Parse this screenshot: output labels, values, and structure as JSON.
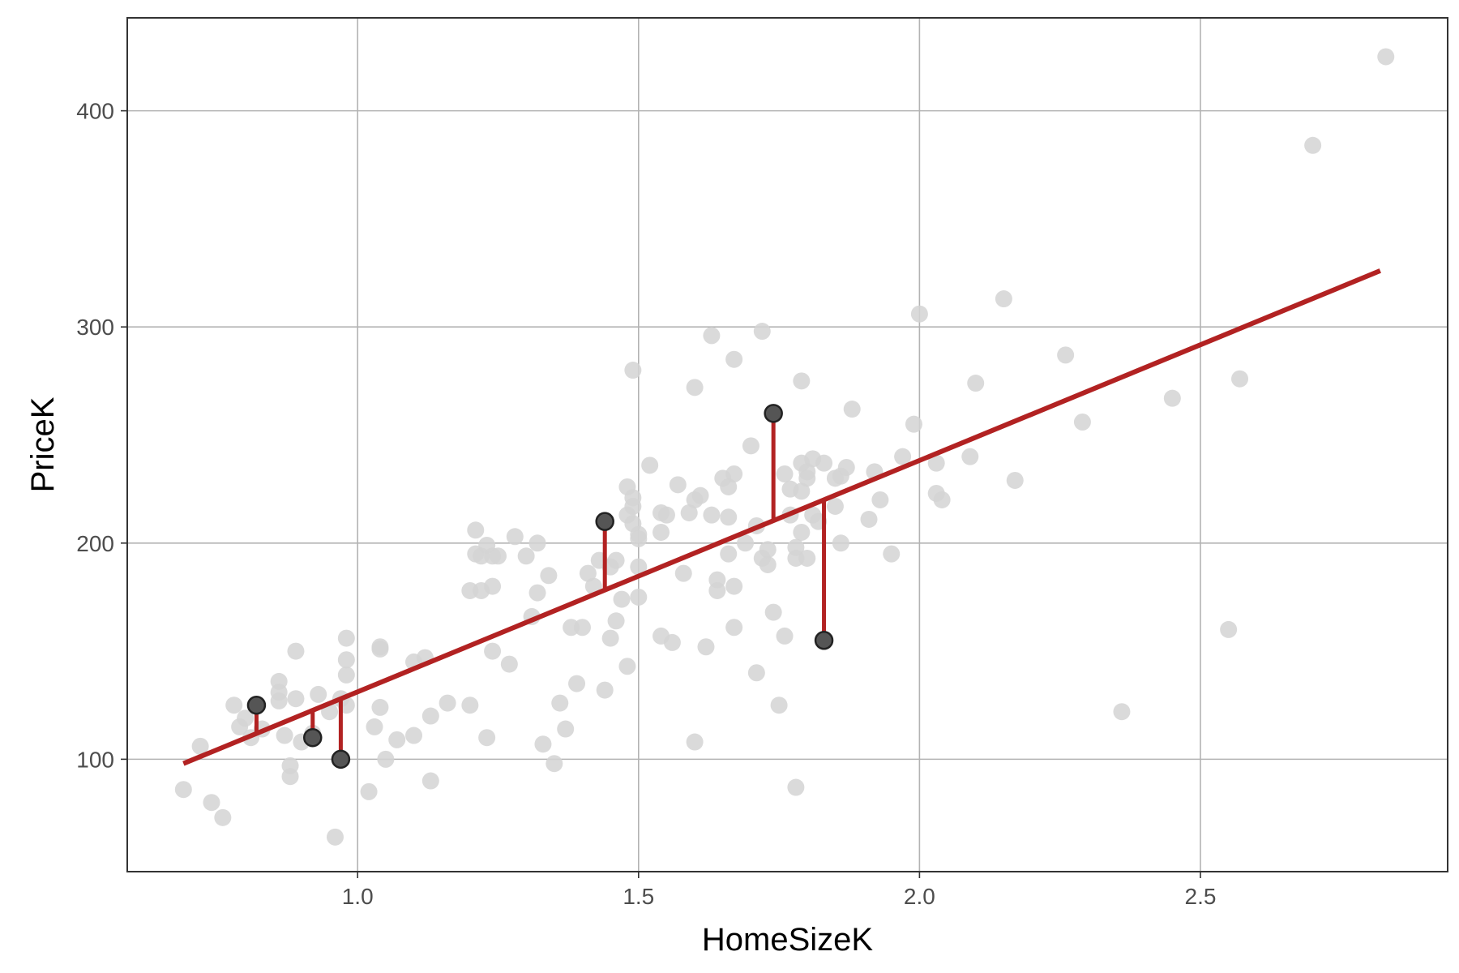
{
  "colors": {
    "background_points": "#d3d3d3",
    "highlight_points": "#555555",
    "highlight_point_outline": "#222222",
    "regression_line": "#b22222",
    "residual_segments": "#b22222",
    "grid": "#b3b3b3",
    "panel_border": "#333333"
  },
  "chart_data": {
    "type": "scatter",
    "title": "",
    "xlabel": "HomeSizeK",
    "ylabel": "PriceK",
    "xlim": [
      0.59,
      2.94
    ],
    "ylim": [
      48,
      443
    ],
    "x_ticks": [
      1.0,
      1.5,
      2.0,
      2.5
    ],
    "x_tick_labels": [
      "1.0",
      "1.5",
      "2.0",
      "2.5"
    ],
    "y_ticks": [
      100,
      200,
      300,
      400
    ],
    "y_tick_labels": [
      "100",
      "200",
      "300",
      "400"
    ],
    "grid": true,
    "legend": "none",
    "regression_line": {
      "x": [
        0.69,
        2.82
      ],
      "y": [
        98,
        326
      ]
    },
    "highlighted_points": [
      {
        "x": 0.82,
        "y": 125,
        "fitted": 112
      },
      {
        "x": 0.92,
        "y": 110,
        "fitted": 122
      },
      {
        "x": 0.97,
        "y": 100,
        "fitted": 128
      },
      {
        "x": 1.44,
        "y": 210,
        "fitted": 178
      },
      {
        "x": 1.74,
        "y": 260,
        "fitted": 210
      },
      {
        "x": 1.83,
        "y": 155,
        "fitted": 220
      }
    ],
    "points": [
      [
        0.69,
        86
      ],
      [
        0.72,
        106
      ],
      [
        0.74,
        80
      ],
      [
        0.76,
        73
      ],
      [
        0.78,
        125
      ],
      [
        0.79,
        115
      ],
      [
        0.8,
        119
      ],
      [
        0.81,
        110
      ],
      [
        0.83,
        114
      ],
      [
        0.86,
        136
      ],
      [
        0.86,
        127
      ],
      [
        0.86,
        131
      ],
      [
        0.87,
        111
      ],
      [
        0.88,
        97
      ],
      [
        0.88,
        92
      ],
      [
        0.89,
        150
      ],
      [
        0.89,
        128
      ],
      [
        0.9,
        108
      ],
      [
        0.92,
        112
      ],
      [
        0.93,
        130
      ],
      [
        0.95,
        122
      ],
      [
        0.96,
        64
      ],
      [
        0.97,
        128
      ],
      [
        0.98,
        125
      ],
      [
        0.98,
        139
      ],
      [
        0.98,
        146
      ],
      [
        0.98,
        156
      ],
      [
        1.02,
        85
      ],
      [
        1.03,
        115
      ],
      [
        1.04,
        151
      ],
      [
        1.04,
        152
      ],
      [
        1.04,
        124
      ],
      [
        1.05,
        100
      ],
      [
        1.07,
        109
      ],
      [
        1.1,
        145
      ],
      [
        1.1,
        111
      ],
      [
        1.12,
        147
      ],
      [
        1.13,
        90
      ],
      [
        1.13,
        120
      ],
      [
        1.16,
        126
      ],
      [
        1.2,
        178
      ],
      [
        1.2,
        125
      ],
      [
        1.21,
        206
      ],
      [
        1.21,
        195
      ],
      [
        1.22,
        178
      ],
      [
        1.22,
        194
      ],
      [
        1.23,
        199
      ],
      [
        1.23,
        110
      ],
      [
        1.24,
        194
      ],
      [
        1.24,
        180
      ],
      [
        1.24,
        150
      ],
      [
        1.25,
        194
      ],
      [
        1.27,
        144
      ],
      [
        1.28,
        203
      ],
      [
        1.3,
        194
      ],
      [
        1.31,
        166
      ],
      [
        1.32,
        177
      ],
      [
        1.32,
        200
      ],
      [
        1.33,
        107
      ],
      [
        1.34,
        185
      ],
      [
        1.35,
        98
      ],
      [
        1.36,
        126
      ],
      [
        1.37,
        114
      ],
      [
        1.38,
        161
      ],
      [
        1.39,
        135
      ],
      [
        1.4,
        161
      ],
      [
        1.41,
        186
      ],
      [
        1.42,
        180
      ],
      [
        1.43,
        192
      ],
      [
        1.44,
        132
      ],
      [
        1.45,
        189
      ],
      [
        1.45,
        156
      ],
      [
        1.46,
        164
      ],
      [
        1.46,
        192
      ],
      [
        1.47,
        174
      ],
      [
        1.48,
        143
      ],
      [
        1.48,
        226
      ],
      [
        1.48,
        213
      ],
      [
        1.49,
        209
      ],
      [
        1.49,
        221
      ],
      [
        1.49,
        217
      ],
      [
        1.49,
        280
      ],
      [
        1.5,
        204
      ],
      [
        1.5,
        189
      ],
      [
        1.5,
        202
      ],
      [
        1.5,
        175
      ],
      [
        1.52,
        236
      ],
      [
        1.54,
        214
      ],
      [
        1.54,
        205
      ],
      [
        1.54,
        157
      ],
      [
        1.55,
        213
      ],
      [
        1.56,
        154
      ],
      [
        1.57,
        227
      ],
      [
        1.58,
        186
      ],
      [
        1.59,
        214
      ],
      [
        1.6,
        220
      ],
      [
        1.6,
        272
      ],
      [
        1.6,
        108
      ],
      [
        1.61,
        222
      ],
      [
        1.62,
        152
      ],
      [
        1.63,
        213
      ],
      [
        1.63,
        296
      ],
      [
        1.64,
        183
      ],
      [
        1.64,
        178
      ],
      [
        1.65,
        230
      ],
      [
        1.66,
        212
      ],
      [
        1.66,
        195
      ],
      [
        1.66,
        226
      ],
      [
        1.67,
        232
      ],
      [
        1.67,
        285
      ],
      [
        1.67,
        180
      ],
      [
        1.67,
        161
      ],
      [
        1.69,
        200
      ],
      [
        1.7,
        245
      ],
      [
        1.71,
        140
      ],
      [
        1.71,
        208
      ],
      [
        1.72,
        298
      ],
      [
        1.72,
        193
      ],
      [
        1.73,
        190
      ],
      [
        1.73,
        197
      ],
      [
        1.74,
        168
      ],
      [
        1.75,
        125
      ],
      [
        1.76,
        157
      ],
      [
        1.76,
        232
      ],
      [
        1.77,
        213
      ],
      [
        1.77,
        225
      ],
      [
        1.78,
        193
      ],
      [
        1.78,
        198
      ],
      [
        1.78,
        87
      ],
      [
        1.79,
        205
      ],
      [
        1.79,
        237
      ],
      [
        1.79,
        224
      ],
      [
        1.79,
        275
      ],
      [
        1.8,
        193
      ],
      [
        1.8,
        230
      ],
      [
        1.8,
        233
      ],
      [
        1.81,
        213
      ],
      [
        1.81,
        239
      ],
      [
        1.82,
        210
      ],
      [
        1.83,
        237
      ],
      [
        1.85,
        230
      ],
      [
        1.85,
        217
      ],
      [
        1.86,
        231
      ],
      [
        1.86,
        200
      ],
      [
        1.87,
        235
      ],
      [
        1.88,
        262
      ],
      [
        1.91,
        211
      ],
      [
        1.92,
        233
      ],
      [
        1.93,
        220
      ],
      [
        1.95,
        195
      ],
      [
        1.97,
        240
      ],
      [
        1.99,
        255
      ],
      [
        2.0,
        306
      ],
      [
        2.03,
        237
      ],
      [
        2.03,
        223
      ],
      [
        2.04,
        220
      ],
      [
        2.09,
        240
      ],
      [
        2.1,
        274
      ],
      [
        2.15,
        313
      ],
      [
        2.17,
        229
      ],
      [
        2.26,
        287
      ],
      [
        2.29,
        256
      ],
      [
        2.36,
        122
      ],
      [
        2.45,
        267
      ],
      [
        2.55,
        160
      ],
      [
        2.57,
        276
      ],
      [
        2.7,
        384
      ],
      [
        2.83,
        425
      ]
    ]
  }
}
